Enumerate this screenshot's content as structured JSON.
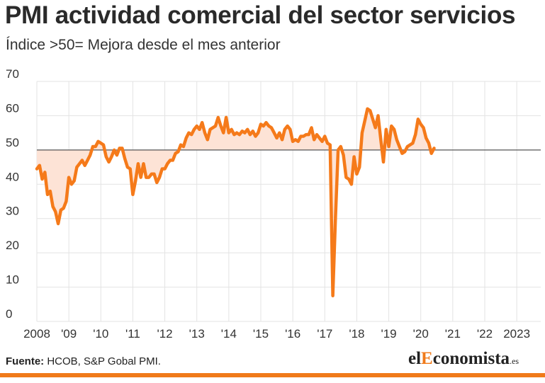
{
  "title": "PMI actividad comercial del sector servicios",
  "subtitle": "Índice >50= Mejora desde el mes anterior",
  "source": {
    "label": "Fuente:",
    "text": "HCOB, S&P Gobal PMI."
  },
  "brand": {
    "prefix": "el",
    "accent": "E",
    "rest": "conomista",
    "tld": ".es"
  },
  "colors": {
    "line": "#f57a1a",
    "fill": "#fde3d6",
    "grid": "#e3e3e3",
    "baseline": "#555555",
    "footer": "#f07a1a"
  },
  "chart_data": {
    "type": "line",
    "x_start": 2008.0,
    "x_step": 0.08333,
    "xlim": [
      2008.0,
      2023.75
    ],
    "ylim": [
      0,
      70
    ],
    "reference_line": 50,
    "fill_to_reference": true,
    "grid": true,
    "yticks": [
      0,
      10,
      20,
      30,
      40,
      50,
      60,
      70
    ],
    "xtick_labels": [
      {
        "x": 2008.0,
        "label": "2008"
      },
      {
        "x": 2009.0,
        "label": "'09"
      },
      {
        "x": 2010.0,
        "label": "'10"
      },
      {
        "x": 2011.0,
        "label": "'11"
      },
      {
        "x": 2012.0,
        "label": "'12"
      },
      {
        "x": 2013.0,
        "label": "'13"
      },
      {
        "x": 2014.0,
        "label": "'14"
      },
      {
        "x": 2015.0,
        "label": "'15"
      },
      {
        "x": 2016.0,
        "label": "'16"
      },
      {
        "x": 2017.0,
        "label": "'17"
      },
      {
        "x": 2018.0,
        "label": "'18"
      },
      {
        "x": 2019.0,
        "label": "'19"
      },
      {
        "x": 2020.0,
        "label": "'20"
      },
      {
        "x": 2021.0,
        "label": "'21"
      },
      {
        "x": 2022.0,
        "label": "'22"
      },
      {
        "x": 2023.0,
        "label": "2023"
      }
    ],
    "values": [
      44.5,
      45.5,
      41.5,
      43.5,
      37,
      38,
      33.5,
      32,
      28.5,
      32.5,
      33,
      35,
      42,
      40,
      41,
      45,
      46,
      47,
      45.5,
      47,
      48.5,
      51,
      51,
      52.5,
      52,
      51.5,
      48,
      46.5,
      48,
      50,
      48.5,
      50.5,
      50.5,
      47.5,
      45,
      44.5,
      37,
      41,
      46,
      42,
      46,
      42,
      42,
      43,
      43,
      40.5,
      42,
      44.5,
      44.5,
      46,
      47,
      47,
      49,
      49.5,
      51.5,
      51,
      53.5,
      55,
      54.5,
      56,
      57,
      56,
      58,
      55,
      53,
      56,
      56.5,
      57,
      59.5,
      57,
      55,
      59.5,
      55,
      56,
      54.5,
      55,
      54.5,
      55.5,
      55,
      56,
      54.5,
      55.5,
      54,
      55,
      57.5,
      57,
      58,
      57,
      56.5,
      55,
      53.5,
      55,
      53,
      56,
      57,
      56,
      52.5,
      53,
      52.5,
      54,
      54,
      54.5,
      54.5,
      56.5,
      53,
      54.5,
      53.5,
      52.5,
      54,
      52,
      51.5,
      7.5,
      30,
      50,
      51,
      48.5,
      42,
      41.5,
      40,
      48,
      43,
      45,
      55,
      58.5,
      62,
      61.5,
      59,
      56.5,
      60,
      53,
      46.5,
      56,
      51,
      57,
      56,
      53,
      51,
      49,
      49.5,
      51,
      51.5,
      52,
      54.5,
      59,
      57.5,
      56.5,
      53.5,
      52,
      49,
      50.5
    ]
  }
}
